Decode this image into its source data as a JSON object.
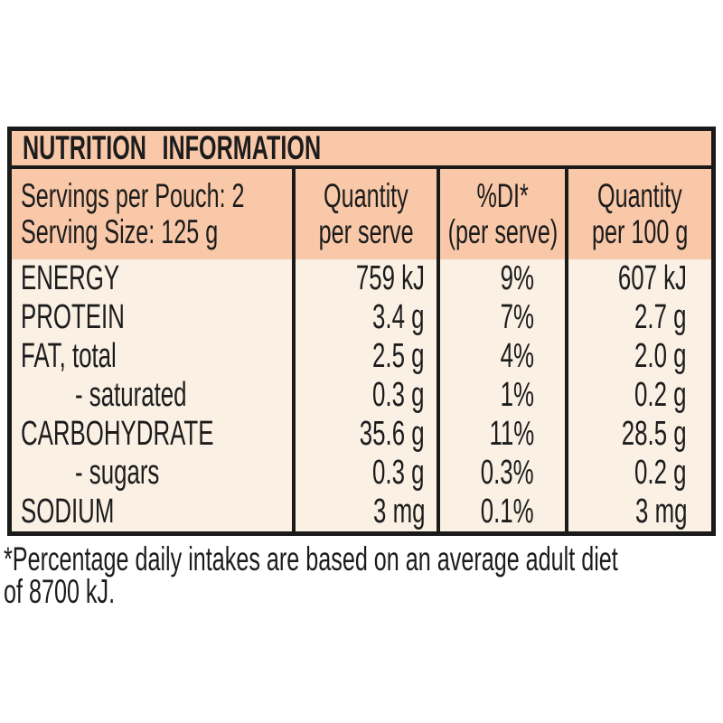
{
  "colors": {
    "salmon": "#F9C8A9",
    "cream": "#FAF0E4",
    "border": "#1A1A1A",
    "text": "#1C1C1C"
  },
  "title": "NUTRITION INFORMATION",
  "header": {
    "servings": [
      "Servings per Pouch: 2",
      "Serving Size: 125 g"
    ],
    "quantity_per_serve": [
      "Quantity",
      "per serve"
    ],
    "di_per_serve": [
      "%DI*",
      "(per serve)"
    ],
    "quantity_per_100g": [
      "Quantity",
      "per 100 g"
    ]
  },
  "rows": [
    {
      "label": "ENERGY",
      "indent": false,
      "per_serve": "759 kJ",
      "di_percent": "9%",
      "per_100g": "607 kJ"
    },
    {
      "label": "PROTEIN",
      "indent": false,
      "per_serve": "3.4 g",
      "di_percent": "7%",
      "per_100g": "2.7 g"
    },
    {
      "label": "FAT, total",
      "indent": false,
      "per_serve": "2.5 g",
      "di_percent": "4%",
      "per_100g": "2.0 g"
    },
    {
      "label": "- saturated",
      "indent": true,
      "per_serve": "0.3 g",
      "di_percent": "1%",
      "per_100g": "0.2 g"
    },
    {
      "label": "CARBOHYDRATE",
      "indent": false,
      "per_serve": "35.6 g",
      "di_percent": "11%",
      "per_100g": "28.5 g"
    },
    {
      "label": "- sugars",
      "indent": true,
      "per_serve": "0.3 g",
      "di_percent": "0.3%",
      "per_100g": "0.2 g"
    },
    {
      "label": "SODIUM",
      "indent": false,
      "per_serve": "3 mg",
      "di_percent": "0.1%",
      "per_100g": "3 mg"
    }
  ],
  "footnote": {
    "line1": "*Percentage daily intakes are based on an average adult diet",
    "line2": "of 8700 kJ."
  }
}
